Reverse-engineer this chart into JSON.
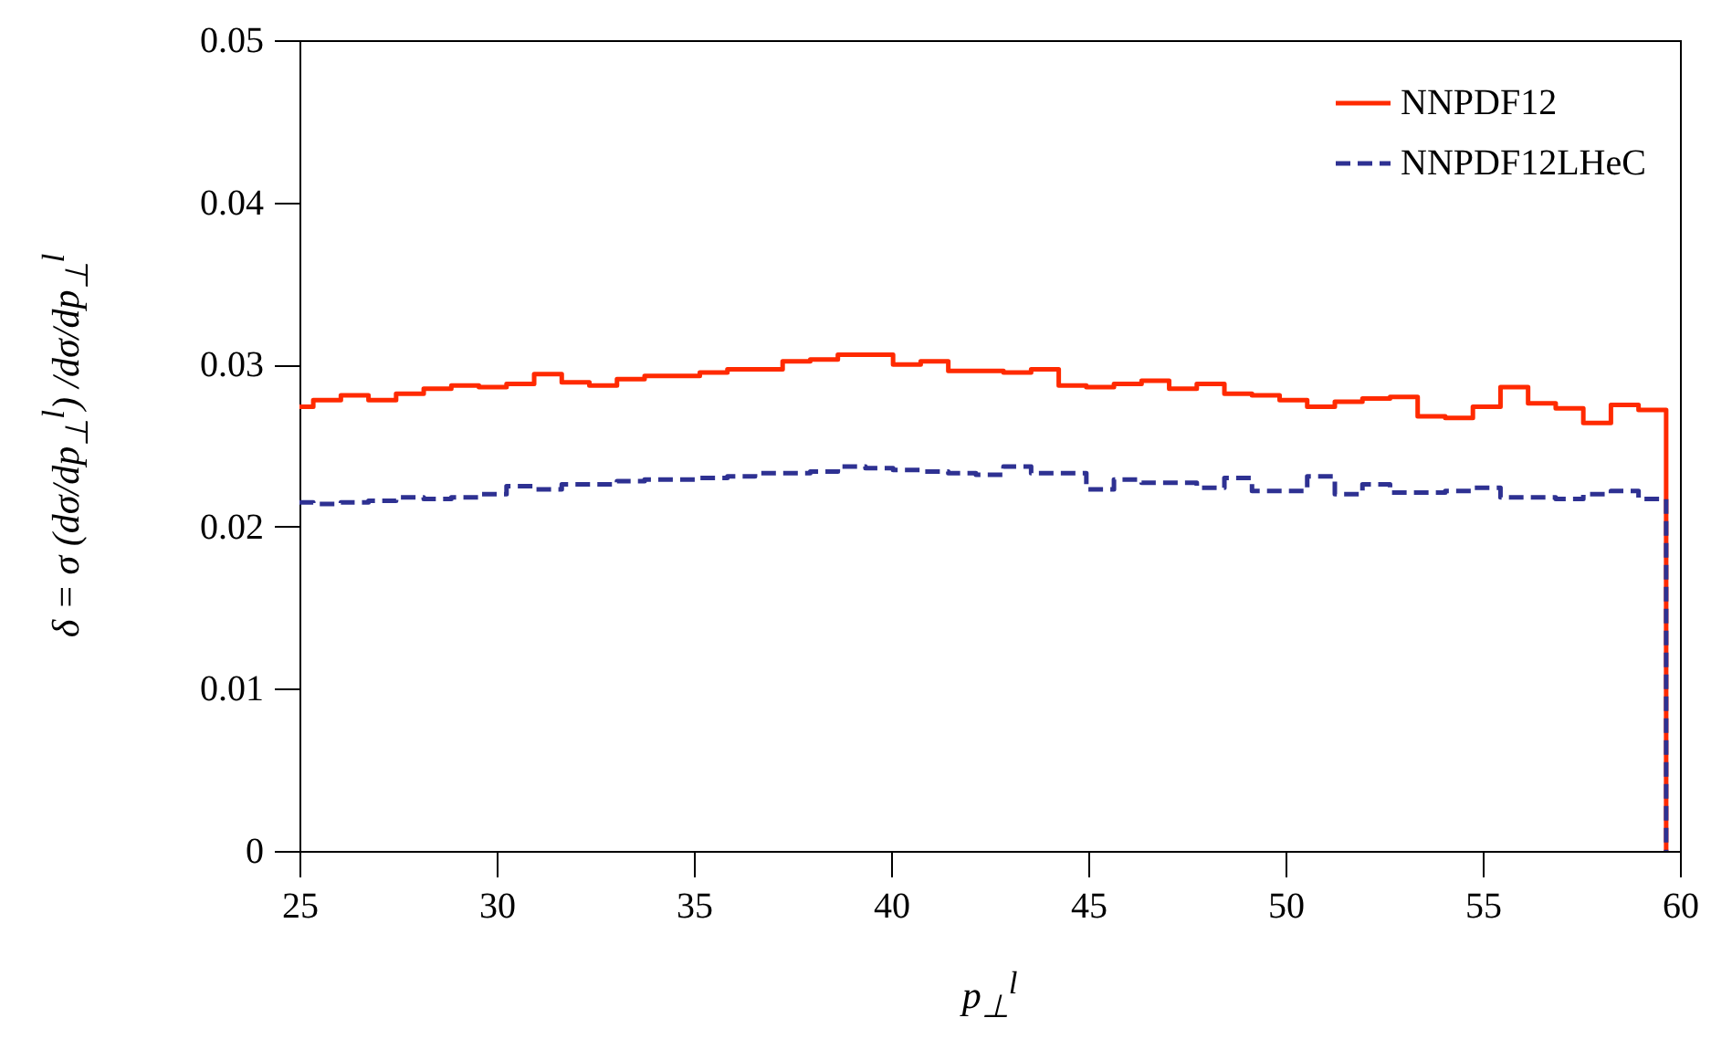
{
  "chart_data": {
    "type": "step",
    "xlabel": "p$_{⊥}$$^{l}$",
    "ylabel": "δ = σ (dσ/dp$_{⊥}$$^{l}$) /dσ/dp$_{⊥}$$^{l}$",
    "x": [
      25,
      25.35,
      26.05,
      26.75,
      27.45,
      28.15,
      28.85,
      29.55,
      30.25,
      30.95,
      31.65,
      32.35,
      33.05,
      33.75,
      34.45,
      35.15,
      35.85,
      36.55,
      37.25,
      37.95,
      38.65,
      39.35,
      40.05,
      40.75,
      41.45,
      42.15,
      42.85,
      43.55,
      44.25,
      44.95,
      45.65,
      46.35,
      47.05,
      47.75,
      48.45,
      49.15,
      49.85,
      50.55,
      51.25,
      51.95,
      52.65,
      53.35,
      54.05,
      54.75,
      55.45,
      56.15,
      56.85,
      57.55,
      58.25,
      58.95,
      59.65
    ],
    "series": [
      {
        "name": "NNPDF12",
        "color": "#ff2a00",
        "line_style": "solid",
        "values": [
          0.0274,
          0.0278,
          0.0281,
          0.0278,
          0.0282,
          0.0285,
          0.0287,
          0.0286,
          0.0288,
          0.0294,
          0.0289,
          0.0287,
          0.0291,
          0.0293,
          0.0293,
          0.0295,
          0.0297,
          0.0297,
          0.0302,
          0.0303,
          0.0306,
          0.0306,
          0.03,
          0.0302,
          0.0296,
          0.0296,
          0.0295,
          0.0297,
          0.0287,
          0.0286,
          0.0288,
          0.029,
          0.0285,
          0.0288,
          0.0282,
          0.0281,
          0.0278,
          0.0274,
          0.0277,
          0.0279,
          0.028,
          0.0268,
          0.0267,
          0.0274,
          0.0286,
          0.0276,
          0.0273,
          0.0264,
          0.0275,
          0.0272,
          0
        ]
      },
      {
        "name": "NNPDF12LHeC",
        "color": "#2e3192",
        "line_style": "dashed",
        "values": [
          0.0215,
          0.0214,
          0.0215,
          0.0216,
          0.0218,
          0.0217,
          0.0218,
          0.022,
          0.0225,
          0.0223,
          0.0226,
          0.0226,
          0.0228,
          0.0229,
          0.0229,
          0.023,
          0.0231,
          0.0233,
          0.0233,
          0.0234,
          0.0237,
          0.0236,
          0.0235,
          0.0234,
          0.0233,
          0.0232,
          0.0237,
          0.0233,
          0.0233,
          0.0223,
          0.0229,
          0.0227,
          0.0227,
          0.0224,
          0.023,
          0.0222,
          0.0222,
          0.0231,
          0.022,
          0.0226,
          0.0221,
          0.0221,
          0.0222,
          0.0224,
          0.0218,
          0.0218,
          0.0217,
          0.022,
          0.0222,
          0.0217,
          0
        ]
      }
    ],
    "xlim": [
      25,
      60
    ],
    "xticks": [
      25,
      30,
      35,
      40,
      45,
      50,
      55,
      60
    ],
    "ylim": [
      0,
      0.05
    ],
    "yticks": [
      0,
      0.01,
      0.02,
      0.03,
      0.04,
      0.05
    ],
    "grid": false,
    "legend": "top right"
  }
}
